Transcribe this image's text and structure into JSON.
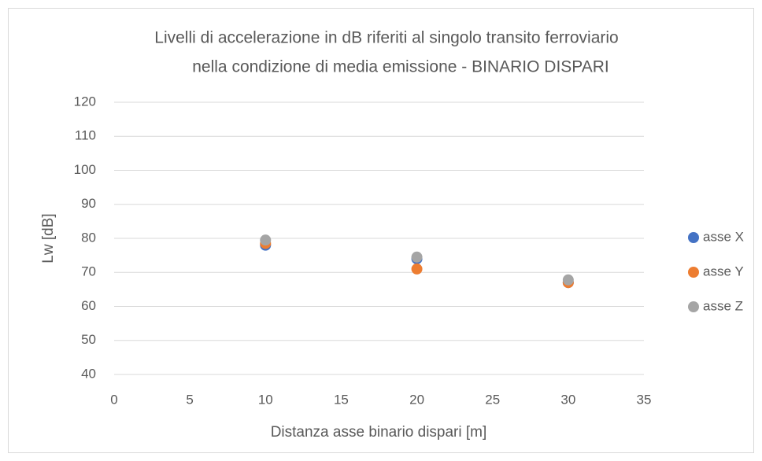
{
  "chart_data": {
    "type": "scatter",
    "title": [
      "Livelli di accelerazione in dB riferiti al singolo transito ferroviario",
      "nella condizione di media emissione  - BINARIO DISPARI"
    ],
    "xlabel": "Distanza asse binario dispari [m]",
    "ylabel": "Lw [dB]",
    "xlim": [
      0,
      35
    ],
    "xticks": [
      0,
      5,
      10,
      15,
      20,
      25,
      30,
      35
    ],
    "ylim": [
      40,
      120
    ],
    "yticks": [
      40,
      50,
      60,
      70,
      80,
      90,
      100,
      110,
      120
    ],
    "grid": true,
    "legend": "right",
    "series": [
      {
        "name": "asse X",
        "color": "#4472c4",
        "x": [
          10,
          20,
          30
        ],
        "values": [
          78,
          74,
          67
        ]
      },
      {
        "name": "asse Y",
        "color": "#ed7d31",
        "x": [
          10,
          20,
          30
        ],
        "values": [
          78.5,
          71,
          67
        ]
      },
      {
        "name": "asse Z",
        "color": "#a5a5a5",
        "x": [
          10,
          20,
          30
        ],
        "values": [
          79.5,
          74.5,
          67.8
        ]
      }
    ]
  }
}
